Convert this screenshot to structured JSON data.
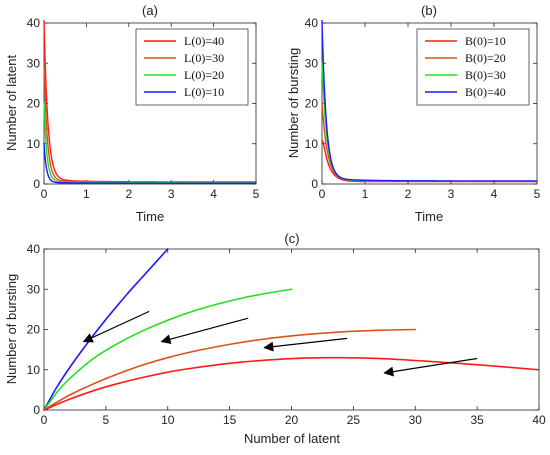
{
  "colors": {
    "red": "#ff1a1a",
    "orange": "#d95319",
    "green": "#22e022",
    "blue": "#1a1aff",
    "axis": "#262626"
  },
  "chart_data": [
    {
      "id": "a",
      "type": "line",
      "title": "(a)",
      "xlabel": "Time",
      "ylabel": "Number of latent",
      "xlim": [
        0,
        5
      ],
      "ylim": [
        0,
        40
      ],
      "xticks": [
        0,
        1,
        2,
        3,
        4,
        5
      ],
      "yticks": [
        0,
        10,
        20,
        30,
        40
      ],
      "legend_position": "top-right",
      "series": [
        {
          "name": "L(0)=40",
          "color": "red",
          "initial": 40,
          "asymptote": 0.5,
          "decay": 11
        },
        {
          "name": "L(0)=30",
          "color": "orange",
          "initial": 30,
          "asymptote": 0.4,
          "decay": 13
        },
        {
          "name": "L(0)=20",
          "color": "green",
          "initial": 20,
          "asymptote": 0.3,
          "decay": 15
        },
        {
          "name": "L(0)=10",
          "color": "blue",
          "initial": 10,
          "asymptote": 0.2,
          "decay": 17
        }
      ]
    },
    {
      "id": "b",
      "type": "line",
      "title": "(b)",
      "xlabel": "Time",
      "ylabel": "Number of bursting",
      "xlim": [
        0,
        5
      ],
      "ylim": [
        0,
        40
      ],
      "xticks": [
        0,
        1,
        2,
        3,
        4,
        5
      ],
      "yticks": [
        0,
        10,
        20,
        30,
        40
      ],
      "legend_position": "top-right",
      "series": [
        {
          "name": "B(0)=10",
          "color": "red",
          "initial": 10,
          "peak": 13,
          "asymptote": 0.6,
          "decay": 7
        },
        {
          "name": "B(0)=20",
          "color": "orange",
          "initial": 20,
          "asymptote": 0.65,
          "decay": 8
        },
        {
          "name": "B(0)=30",
          "color": "green",
          "initial": 30,
          "asymptote": 0.7,
          "decay": 9
        },
        {
          "name": "B(0)=40",
          "color": "blue",
          "initial": 40,
          "asymptote": 0.75,
          "decay": 10
        }
      ]
    },
    {
      "id": "c",
      "type": "line",
      "title": "(c)",
      "xlabel": "Number of latent",
      "ylabel": "Number of bursting",
      "xlim": [
        0,
        40
      ],
      "ylim": [
        0,
        40
      ],
      "xticks": [
        0,
        5,
        10,
        15,
        20,
        25,
        30,
        35,
        40
      ],
      "yticks": [
        0,
        10,
        20,
        30,
        40
      ],
      "series": [
        {
          "color": "blue",
          "x": [
            0,
            1,
            2,
            3,
            4,
            5,
            6,
            7,
            8,
            9,
            10
          ],
          "y": [
            0,
            5.5,
            10.2,
            14.5,
            18.6,
            22.5,
            26.2,
            29.8,
            33.2,
            36.6,
            40
          ]
        },
        {
          "color": "green",
          "x": [
            0,
            1,
            2,
            4,
            6,
            8,
            10,
            12,
            14,
            16,
            18,
            20
          ],
          "y": [
            0,
            4.2,
            7.6,
            12.8,
            16.6,
            19.7,
            22.3,
            24.5,
            26.3,
            27.8,
            29.0,
            30
          ]
        },
        {
          "color": "orange",
          "x": [
            0,
            2,
            4,
            6,
            8,
            10,
            12,
            15,
            18,
            21,
            24,
            27,
            30
          ],
          "y": [
            0,
            3.6,
            6.5,
            9.0,
            11.2,
            13.0,
            14.5,
            16.3,
            17.7,
            18.7,
            19.4,
            19.8,
            20
          ]
        },
        {
          "color": "red",
          "x": [
            0,
            2,
            4,
            6,
            8,
            10,
            12,
            15,
            18,
            21,
            24,
            27,
            30,
            33,
            36,
            40
          ],
          "y": [
            0,
            2.6,
            4.8,
            6.6,
            8.1,
            9.4,
            10.4,
            11.6,
            12.4,
            12.9,
            13.0,
            12.8,
            12.3,
            11.7,
            11.0,
            10
          ]
        }
      ],
      "arrows": [
        {
          "from": [
            8.5,
            24.5
          ],
          "to": [
            3.2,
            17
          ]
        },
        {
          "from": [
            16.5,
            22.8
          ],
          "to": [
            9.5,
            17
          ]
        },
        {
          "from": [
            24.5,
            17.8
          ],
          "to": [
            17.8,
            15.5
          ]
        },
        {
          "from": [
            35,
            12.8
          ],
          "to": [
            27.5,
            9.2
          ]
        }
      ]
    }
  ]
}
